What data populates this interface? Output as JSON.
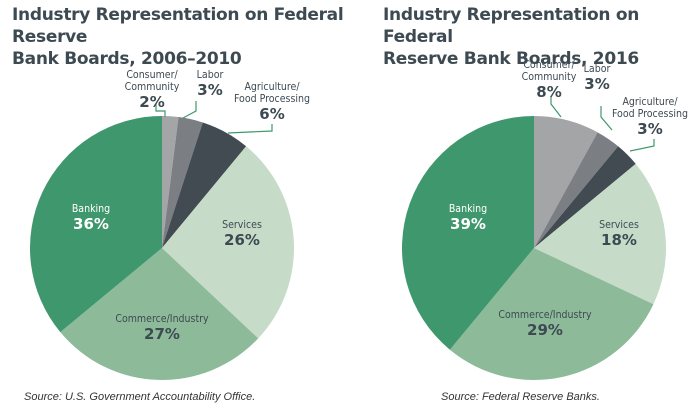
{
  "chart_data": [
    {
      "type": "pie",
      "title": "Industry Representation on Federal Reserve Bank Boards, 2006–2010",
      "title_lines": [
        "Industry Representation on Federal Reserve",
        "Bank Boards, 2006–2010"
      ],
      "source": "Source: U.S. Government Accountability Office.",
      "slices": [
        {
          "label": "Consumer/ Community",
          "label_lines": [
            "Consumer/",
            "Community"
          ],
          "value": 2,
          "pct_label": "2%",
          "color": "#a3a5a7",
          "callout": true
        },
        {
          "label": "Labor",
          "label_lines": [
            "Labor"
          ],
          "value": 3,
          "pct_label": "3%",
          "color": "#7b7f83",
          "callout": true
        },
        {
          "label": "Agriculture/ Food Processing",
          "label_lines": [
            "Agriculture/",
            "Food Processing"
          ],
          "value": 6,
          "pct_label": "6%",
          "color": "#414b51",
          "callout": true
        },
        {
          "label": "Services",
          "label_lines": [
            "Services"
          ],
          "value": 26,
          "pct_label": "26%",
          "color": "#c7dbc9",
          "callout": false
        },
        {
          "label": "Commerce/Industry",
          "label_lines": [
            "Commerce/Industry"
          ],
          "value": 27,
          "pct_label": "27%",
          "color": "#8dbb9a",
          "callout": false
        },
        {
          "label": "Banking",
          "label_lines": [
            "Banking"
          ],
          "value": 36,
          "pct_label": "36%",
          "color": "#3f976d",
          "callout": false
        }
      ]
    },
    {
      "type": "pie",
      "title": "Industry Representation on Federal Reserve Bank Boards, 2016",
      "title_lines": [
        "Industry Representation on Federal",
        "Reserve Bank Boards, 2016"
      ],
      "source": "Source: Federal Reserve Banks.",
      "slices": [
        {
          "label": "Consumer/ Community",
          "label_lines": [
            "Consumer/",
            "Community"
          ],
          "value": 8,
          "pct_label": "8%",
          "color": "#a3a5a7",
          "callout": true
        },
        {
          "label": "Labor",
          "label_lines": [
            "Labor"
          ],
          "value": 3,
          "pct_label": "3%",
          "color": "#7b7f83",
          "callout": true
        },
        {
          "label": "Agriculture/ Food Processing",
          "label_lines": [
            "Agriculture/",
            "Food Processing"
          ],
          "value": 3,
          "pct_label": "3%",
          "color": "#414b51",
          "callout": true
        },
        {
          "label": "Services",
          "label_lines": [
            "Services"
          ],
          "value": 18,
          "pct_label": "18%",
          "color": "#c7dbc9",
          "callout": false
        },
        {
          "label": "Commerce/Industry",
          "label_lines": [
            "Commerce/Industry"
          ],
          "value": 29,
          "pct_label": "29%",
          "color": "#8dbb9a",
          "callout": false
        },
        {
          "label": "Banking",
          "label_lines": [
            "Banking"
          ],
          "value": 39,
          "pct_label": "39%",
          "color": "#3f976d",
          "callout": false
        }
      ]
    }
  ],
  "colors": {
    "title": "#3d4a52",
    "label_dark": "#3d4a52",
    "label_light": "#ffffff",
    "callout_line": "#3f976d"
  }
}
